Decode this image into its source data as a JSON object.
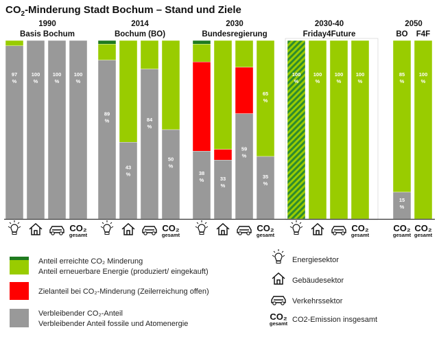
{
  "title": "CO₂-Minderung Stadt Bochum – Stand und Ziele",
  "colors": {
    "achieved": "#1f7a1f",
    "renewable": "#99cc00",
    "target": "#ff0000",
    "remaining": "#999999",
    "hatch_base": "#2e8b2e",
    "hatch_line": "#99cc00"
  },
  "chart_data": {
    "type": "bar",
    "stacked": true,
    "ylim": [
      0,
      100
    ],
    "groups": [
      {
        "year": "1990",
        "label": "Basis Bochum",
        "bars": [
          {
            "sector": "energie",
            "achieved": 0,
            "renewable": 3,
            "target": 0,
            "remaining": 97,
            "label": "97 %"
          },
          {
            "sector": "gebaeude",
            "achieved": 0,
            "renewable": 0,
            "target": 0,
            "remaining": 100,
            "label": "100 %"
          },
          {
            "sector": "verkehr",
            "achieved": 0,
            "renewable": 0,
            "target": 0,
            "remaining": 100,
            "label": "100 %"
          },
          {
            "sector": "gesamt",
            "achieved": 0,
            "renewable": 0,
            "target": 0,
            "remaining": 100,
            "label": "100 %"
          }
        ]
      },
      {
        "year": "2014",
        "label": "Bochum (BO)",
        "bars": [
          {
            "sector": "energie",
            "achieved": 2,
            "renewable": 9,
            "target": 0,
            "remaining": 89,
            "label": "89 %"
          },
          {
            "sector": "gebaeude",
            "achieved": 0,
            "renewable": 57,
            "target": 0,
            "remaining": 43,
            "label": "43 %"
          },
          {
            "sector": "verkehr",
            "achieved": 0,
            "renewable": 16,
            "target": 0,
            "remaining": 84,
            "label": "84 %"
          },
          {
            "sector": "gesamt",
            "achieved": 0,
            "renewable": 50,
            "target": 0,
            "remaining": 50,
            "label": "50 %"
          }
        ]
      },
      {
        "year": "2030",
        "label": "Bundesregierung",
        "bars": [
          {
            "sector": "energie",
            "achieved": 2,
            "renewable": 10,
            "target": 50,
            "remaining": 38,
            "label": "38 %"
          },
          {
            "sector": "gebaeude",
            "achieved": 0,
            "renewable": 61,
            "target": 6,
            "remaining": 33,
            "label": "33 %"
          },
          {
            "sector": "verkehr",
            "achieved": 0,
            "renewable": 15,
            "target": 26,
            "remaining": 59,
            "label": "59 %"
          },
          {
            "sector": "gesamt",
            "achieved": 0,
            "renewable": 65,
            "target": 0,
            "remaining": 35,
            "label": "35 %",
            "label_top": "65 %"
          }
        ]
      },
      {
        "year": "2030-40",
        "label": "Friday4Future",
        "bars": [
          {
            "sector": "energie",
            "hatched": true,
            "achieved": 0,
            "renewable": 100,
            "target": 0,
            "remaining": 0,
            "label_top": "100 %"
          },
          {
            "sector": "gebaeude",
            "achieved": 0,
            "renewable": 100,
            "target": 0,
            "remaining": 0,
            "label_top": "100 %"
          },
          {
            "sector": "verkehr",
            "achieved": 0,
            "renewable": 100,
            "target": 0,
            "remaining": 0,
            "label_top": "100 %"
          },
          {
            "sector": "gesamt",
            "achieved": 0,
            "renewable": 100,
            "target": 0,
            "remaining": 0,
            "label_top": "100 %"
          }
        ]
      },
      {
        "year": "2050",
        "label": "",
        "bars": [
          {
            "sector": "gesamt",
            "sublabel": "BO",
            "achieved": 0,
            "renewable": 85,
            "target": 0,
            "remaining": 15,
            "label": "15 %",
            "label_top": "85 %"
          },
          {
            "sector": "gesamt",
            "sublabel": "F4F",
            "achieved": 0,
            "renewable": 100,
            "target": 0,
            "remaining": 0,
            "label_top": "100 %"
          }
        ]
      }
    ]
  },
  "icons": {
    "co2_big": "CO₂",
    "co2_small": "gesamt"
  },
  "legend": [
    {
      "swatch": "achieved-renewable",
      "lines": [
        "Anteil erreichte CO₂ Minderung",
        "Anteil erneuerbare Energie (produziert/ eingekauft)"
      ]
    },
    {
      "swatch": "target",
      "lines": [
        "Zielanteil bei CO₂-Minderung (Zeilerreichung offen)"
      ]
    },
    {
      "swatch": "remaining",
      "lines": [
        "Verbleibender CO₂-Anteil",
        "Verbleibender Anteil fossile und Atomenergie"
      ]
    }
  ],
  "sector_legend": [
    {
      "icon": "bulb-icon",
      "label": "Energiesektor"
    },
    {
      "icon": "house-icon",
      "label": "Gebäudesektor"
    },
    {
      "icon": "car-icon",
      "label": "Verkehrssektor"
    },
    {
      "icon": "co2-icon",
      "label": "CO2-Emission insgesamt"
    }
  ]
}
